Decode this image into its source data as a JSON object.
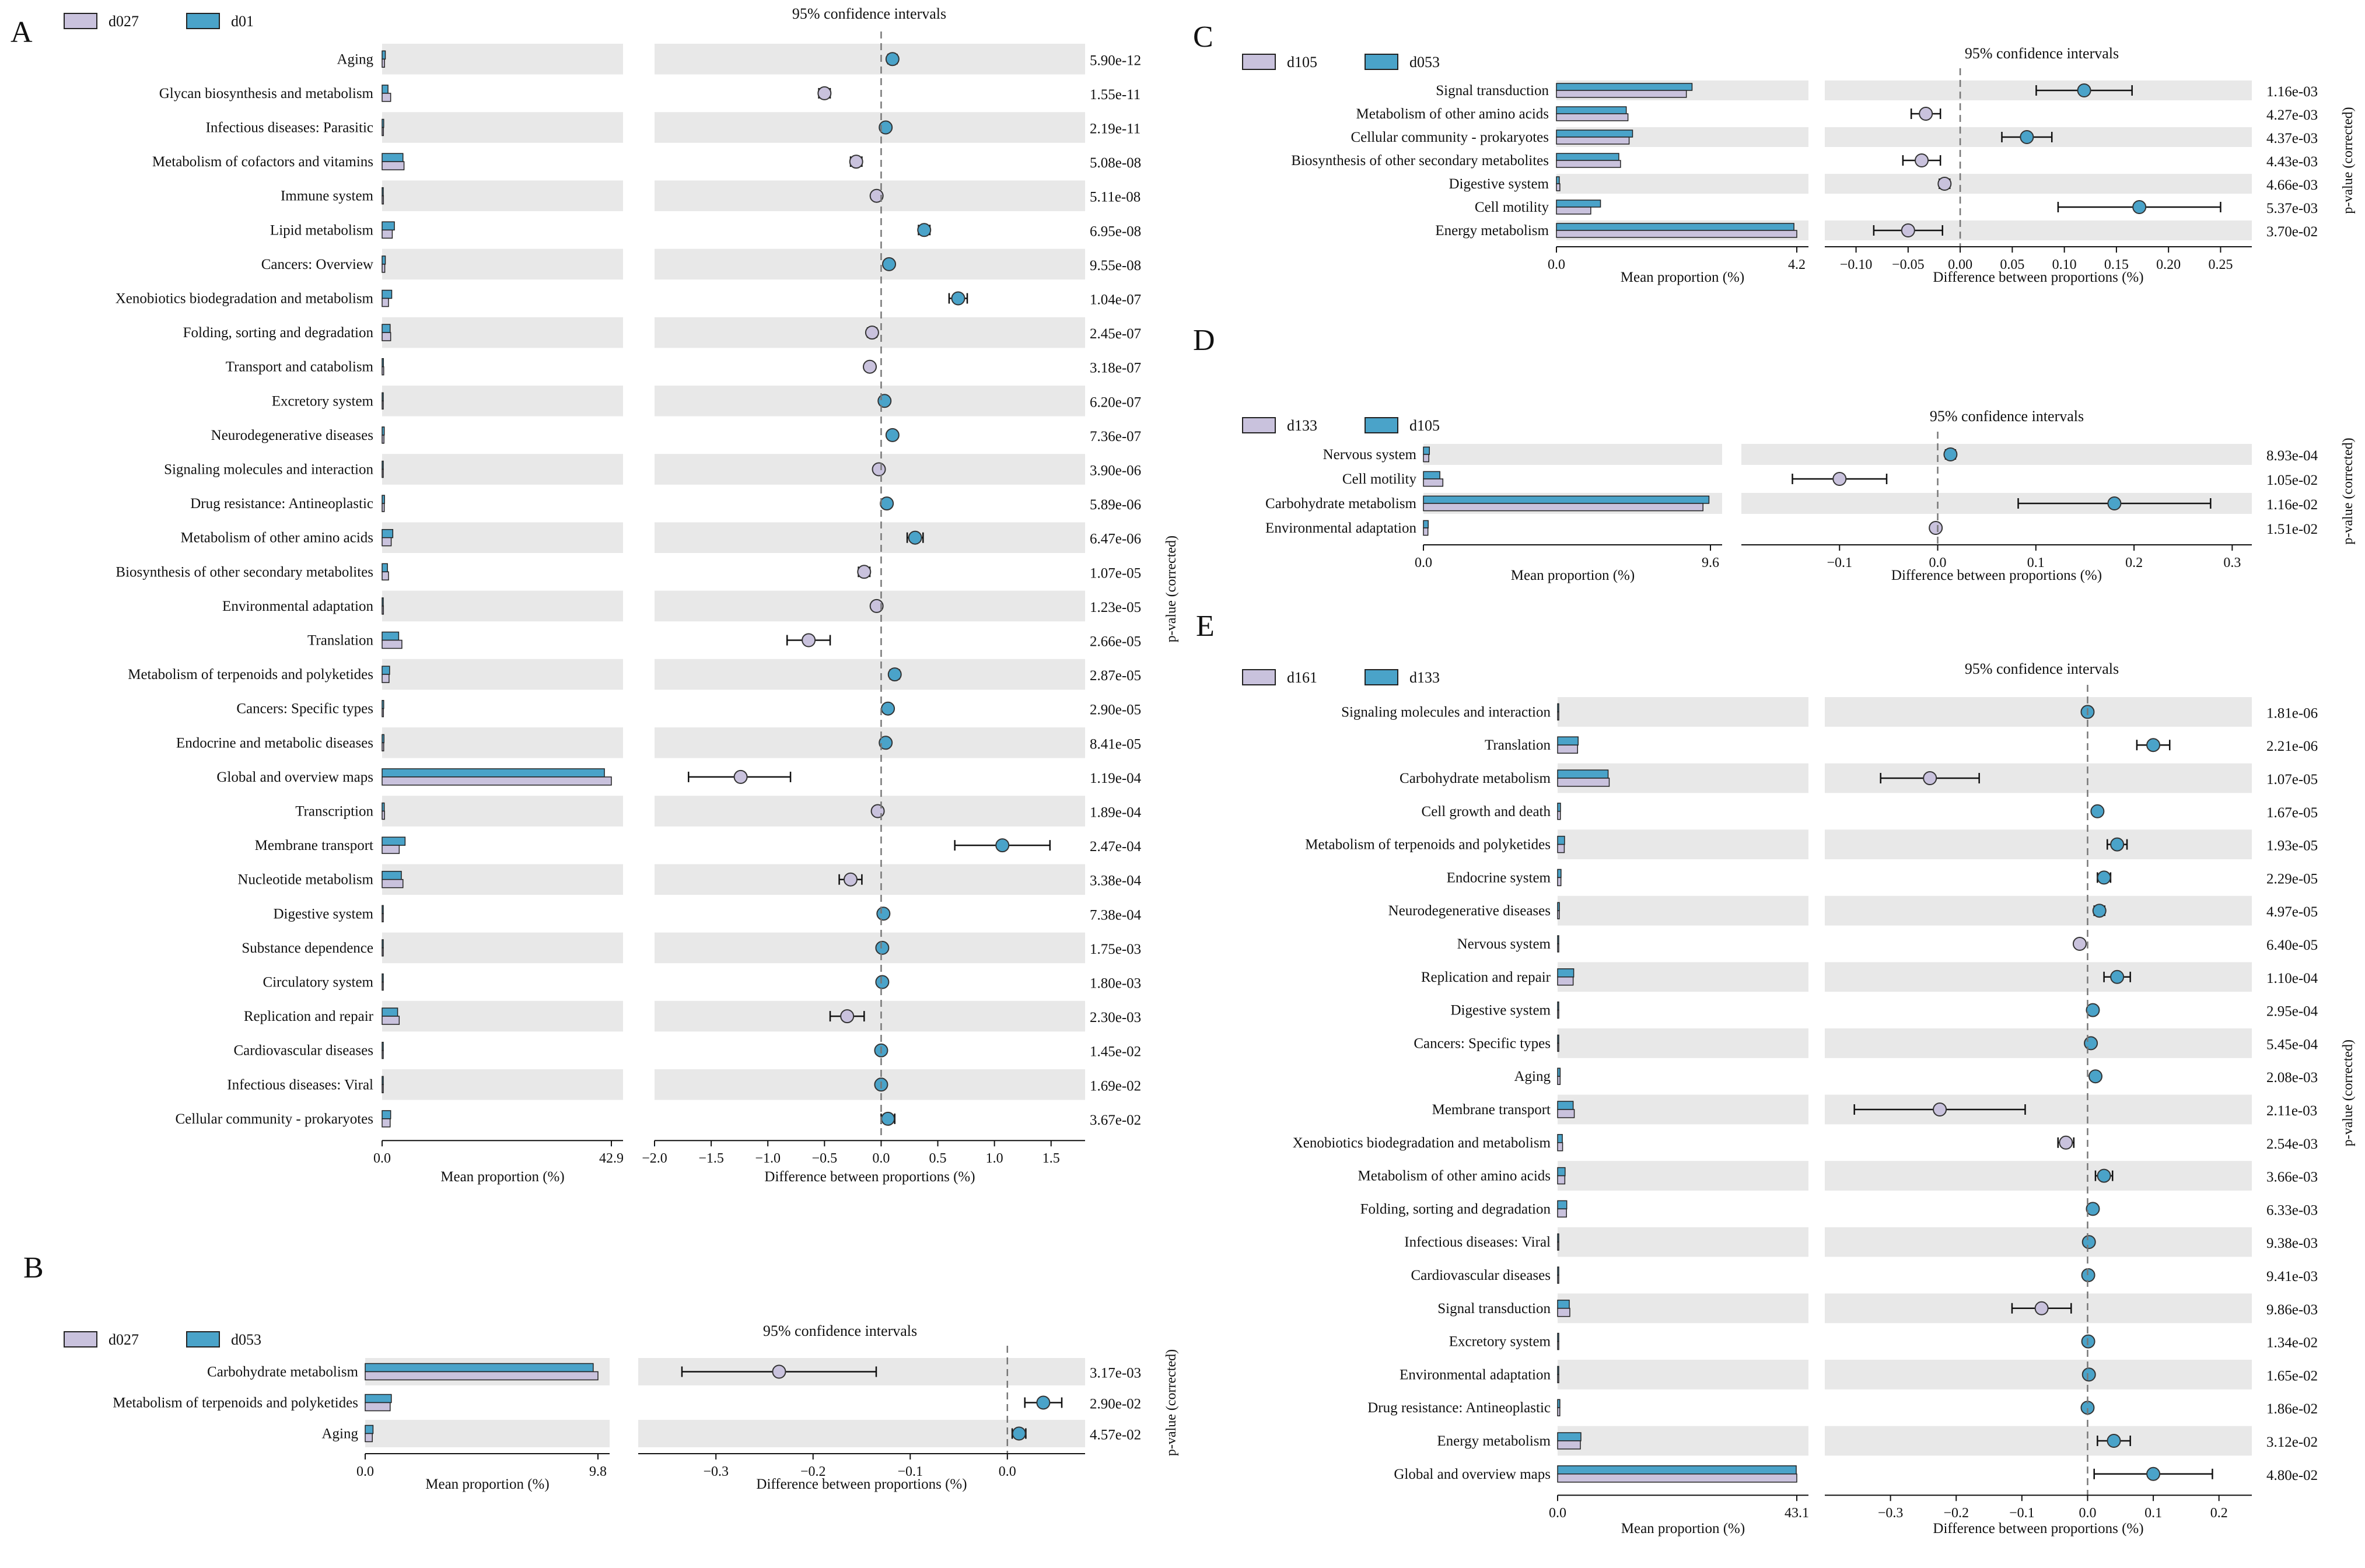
{
  "figure": {
    "description_colors": {
      "group_a": "#c9c2dd",
      "group_b": "#4aa3c9",
      "stripe": "#e8e8e8",
      "ink": "#111111"
    },
    "ci_title": "95% confidence intervals",
    "pvalue_label": "p-value (corrected)",
    "mean_label": "Mean proportion (%)",
    "diff_label": "Difference between proportions (%)"
  },
  "chart_data": [
    {
      "panel": "A",
      "type": "extended_error_bar",
      "group_a": "d027",
      "group_b": "d01",
      "mean_max": 42.9,
      "xlim": [
        -2.0,
        1.8
      ],
      "xticks": [
        -2.0,
        -1.5,
        -1.0,
        -0.5,
        0.0,
        0.5,
        1.0,
        1.5
      ],
      "xtick_labels": [
        "−2.0",
        "−1.5",
        "−1.0",
        "−0.5",
        "0.0",
        "0.5",
        "1.0",
        "1.5"
      ],
      "rows": [
        {
          "label": "Aging",
          "mean_a": 0.45,
          "mean_b": 0.6,
          "diff": 0.1,
          "ci": [
            0.06,
            0.14
          ],
          "p": "5.90e-12"
        },
        {
          "label": "Glycan biosynthesis and metabolism",
          "mean_a": 1.6,
          "mean_b": 1.1,
          "diff": -0.5,
          "ci": [
            -0.55,
            -0.45
          ],
          "p": "1.55e-11"
        },
        {
          "label": "Infectious diseases: Parasitic",
          "mean_a": 0.25,
          "mean_b": 0.3,
          "diff": 0.04,
          "ci": [
            0.01,
            0.07
          ],
          "p": "2.19e-11"
        },
        {
          "label": "Metabolism of cofactors and vitamins",
          "mean_a": 4.1,
          "mean_b": 3.9,
          "diff": -0.22,
          "ci": [
            -0.27,
            -0.17
          ],
          "p": "5.08e-08"
        },
        {
          "label": "Immune system",
          "mean_a": 0.25,
          "mean_b": 0.2,
          "diff": -0.04,
          "ci": [
            -0.07,
            -0.01
          ],
          "p": "5.11e-08"
        },
        {
          "label": "Lipid metabolism",
          "mean_a": 1.9,
          "mean_b": 2.3,
          "diff": 0.38,
          "ci": [
            0.33,
            0.43
          ],
          "p": "6.95e-08"
        },
        {
          "label": "Cancers: Overview",
          "mean_a": 0.5,
          "mean_b": 0.6,
          "diff": 0.07,
          "ci": [
            0.04,
            0.1
          ],
          "p": "9.55e-08"
        },
        {
          "label": "Xenobiotics biodegradation and metabolism",
          "mean_a": 1.2,
          "mean_b": 1.8,
          "diff": 0.68,
          "ci": [
            0.6,
            0.76
          ],
          "p": "1.04e-07"
        },
        {
          "label": "Folding, sorting and degradation",
          "mean_a": 1.6,
          "mean_b": 1.5,
          "diff": -0.08,
          "ci": [
            -0.12,
            -0.04
          ],
          "p": "2.45e-07"
        },
        {
          "label": "Transport and catabolism",
          "mean_a": 0.3,
          "mean_b": 0.25,
          "diff": -0.1,
          "ci": [
            -0.13,
            -0.07
          ],
          "p": "3.18e-07"
        },
        {
          "label": "Excretory system",
          "mean_a": 0.1,
          "mean_b": 0.12,
          "diff": 0.03,
          "ci": [
            0.01,
            0.05
          ],
          "p": "6.20e-07"
        },
        {
          "label": "Neurodegenerative diseases",
          "mean_a": 0.35,
          "mean_b": 0.4,
          "diff": 0.1,
          "ci": [
            0.07,
            0.13
          ],
          "p": "7.36e-07"
        },
        {
          "label": "Signaling molecules and interaction",
          "mean_a": 0.2,
          "mean_b": 0.18,
          "diff": -0.02,
          "ci": [
            -0.04,
            0.0
          ],
          "p": "3.90e-06"
        },
        {
          "label": "Drug resistance: Antineoplastic",
          "mean_a": 0.4,
          "mean_b": 0.45,
          "diff": 0.05,
          "ci": [
            0.03,
            0.07
          ],
          "p": "5.89e-06"
        },
        {
          "label": "Metabolism of other amino acids",
          "mean_a": 1.7,
          "mean_b": 2.0,
          "diff": 0.3,
          "ci": [
            0.23,
            0.37
          ],
          "p": "6.47e-06"
        },
        {
          "label": "Biosynthesis of other secondary metabolites",
          "mean_a": 1.2,
          "mean_b": 1.0,
          "diff": -0.15,
          "ci": [
            -0.2,
            -0.1
          ],
          "p": "1.07e-05"
        },
        {
          "label": "Environmental adaptation",
          "mean_a": 0.25,
          "mean_b": 0.2,
          "diff": -0.04,
          "ci": [
            -0.07,
            -0.01
          ],
          "p": "1.23e-05"
        },
        {
          "label": "Translation",
          "mean_a": 3.7,
          "mean_b": 3.1,
          "diff": -0.64,
          "ci": [
            -0.83,
            -0.45
          ],
          "p": "2.66e-05"
        },
        {
          "label": "Metabolism of terpenoids and polyketides",
          "mean_a": 1.3,
          "mean_b": 1.4,
          "diff": 0.12,
          "ci": [
            0.08,
            0.16
          ],
          "p": "2.87e-05"
        },
        {
          "label": "Cancers: Specific types",
          "mean_a": 0.25,
          "mean_b": 0.3,
          "diff": 0.06,
          "ci": [
            0.03,
            0.09
          ],
          "p": "2.90e-05"
        },
        {
          "label": "Endocrine and metabolic diseases",
          "mean_a": 0.3,
          "mean_b": 0.35,
          "diff": 0.04,
          "ci": [
            0.01,
            0.07
          ],
          "p": "8.41e-05"
        },
        {
          "label": "Global and overview maps",
          "mean_a": 42.9,
          "mean_b": 41.6,
          "diff": -1.24,
          "ci": [
            -1.7,
            -0.8
          ],
          "p": "1.19e-04"
        },
        {
          "label": "Transcription",
          "mean_a": 0.45,
          "mean_b": 0.4,
          "diff": -0.03,
          "ci": [
            -0.06,
            0.0
          ],
          "p": "1.89e-04"
        },
        {
          "label": "Membrane transport",
          "mean_a": 3.2,
          "mean_b": 4.3,
          "diff": 1.07,
          "ci": [
            0.65,
            1.49
          ],
          "p": "2.47e-04"
        },
        {
          "label": "Nucleotide metabolism",
          "mean_a": 3.9,
          "mean_b": 3.6,
          "diff": -0.27,
          "ci": [
            -0.37,
            -0.17
          ],
          "p": "3.38e-04"
        },
        {
          "label": "Digestive system",
          "mean_a": 0.08,
          "mean_b": 0.1,
          "diff": 0.02,
          "ci": [
            0.0,
            0.04
          ],
          "p": "7.38e-04"
        },
        {
          "label": "Substance dependence",
          "mean_a": 0.05,
          "mean_b": 0.06,
          "diff": 0.01,
          "ci": [
            -0.01,
            0.03
          ],
          "p": "1.75e-03"
        },
        {
          "label": "Circulatory system",
          "mean_a": 0.05,
          "mean_b": 0.06,
          "diff": 0.01,
          "ci": [
            -0.01,
            0.03
          ],
          "p": "1.80e-03"
        },
        {
          "label": "Replication and repair",
          "mean_a": 3.2,
          "mean_b": 2.9,
          "diff": -0.3,
          "ci": [
            -0.45,
            -0.15
          ],
          "p": "2.30e-03"
        },
        {
          "label": "Cardiovascular diseases",
          "mean_a": 0.05,
          "mean_b": 0.06,
          "diff": 0.0,
          "ci": [
            -0.02,
            0.02
          ],
          "p": "1.45e-02"
        },
        {
          "label": "Infectious diseases: Viral",
          "mean_a": 0.05,
          "mean_b": 0.06,
          "diff": 0.0,
          "ci": [
            -0.02,
            0.02
          ],
          "p": "1.69e-02"
        },
        {
          "label": "Cellular community - prokaryotes",
          "mean_a": 1.5,
          "mean_b": 1.6,
          "diff": 0.06,
          "ci": [
            0.0,
            0.12
          ],
          "p": "3.67e-02"
        }
      ]
    },
    {
      "panel": "B",
      "type": "extended_error_bar",
      "group_a": "d027",
      "group_b": "d053",
      "mean_max": 9.8,
      "xlim": [
        -0.38,
        0.08
      ],
      "xticks": [
        -0.3,
        -0.2,
        -0.1,
        0.0
      ],
      "xtick_labels": [
        "−0.3",
        "−0.2",
        "−0.1",
        "0.0"
      ],
      "rows": [
        {
          "label": "Carbohydrate metabolism",
          "mean_a": 9.8,
          "mean_b": 9.6,
          "diff": -0.235,
          "ci": [
            -0.335,
            -0.135
          ],
          "p": "3.17e-03"
        },
        {
          "label": "Metabolism of terpenoids and polyketides",
          "mean_a": 1.05,
          "mean_b": 1.1,
          "diff": 0.037,
          "ci": [
            0.018,
            0.056
          ],
          "p": "2.90e-02"
        },
        {
          "label": "Aging",
          "mean_a": 0.3,
          "mean_b": 0.33,
          "diff": 0.012,
          "ci": [
            0.005,
            0.019
          ],
          "p": "4.57e-02"
        }
      ]
    },
    {
      "panel": "C",
      "type": "extended_error_bar",
      "group_a": "d105",
      "group_b": "d053",
      "mean_max": 4.2,
      "xlim": [
        -0.13,
        0.28
      ],
      "xticks": [
        -0.1,
        -0.05,
        0.0,
        0.05,
        0.1,
        0.15,
        0.2,
        0.25
      ],
      "xtick_labels": [
        "−0.10",
        "−0.05",
        "0.00",
        "0.05",
        "0.10",
        "0.15",
        "0.20",
        "0.25"
      ],
      "rows": [
        {
          "label": "Signal transduction",
          "mean_a": 2.27,
          "mean_b": 2.37,
          "diff": 0.119,
          "ci": [
            0.073,
            0.165
          ],
          "p": "1.16e-03"
        },
        {
          "label": "Metabolism of other amino acids",
          "mean_a": 1.25,
          "mean_b": 1.22,
          "diff": -0.033,
          "ci": [
            -0.047,
            -0.019
          ],
          "p": "4.27e-03"
        },
        {
          "label": "Cellular community - prokaryotes",
          "mean_a": 1.27,
          "mean_b": 1.33,
          "diff": 0.064,
          "ci": [
            0.04,
            0.088
          ],
          "p": "4.37e-03"
        },
        {
          "label": "Biosynthesis of other secondary metabolites",
          "mean_a": 1.12,
          "mean_b": 1.09,
          "diff": -0.037,
          "ci": [
            -0.055,
            -0.019
          ],
          "p": "4.43e-03"
        },
        {
          "label": "Digestive system",
          "mean_a": 0.06,
          "mean_b": 0.05,
          "diff": -0.015,
          "ci": [
            -0.02,
            -0.01
          ],
          "p": "4.66e-03"
        },
        {
          "label": "Cell motility",
          "mean_a": 0.6,
          "mean_b": 0.77,
          "diff": 0.172,
          "ci": [
            0.094,
            0.25
          ],
          "p": "5.37e-03"
        },
        {
          "label": "Energy metabolism",
          "mean_a": 4.2,
          "mean_b": 4.15,
          "diff": -0.05,
          "ci": [
            -0.083,
            -0.017
          ],
          "p": "3.70e-02"
        }
      ]
    },
    {
      "panel": "D",
      "type": "extended_error_bar",
      "group_a": "d133",
      "group_b": "d105",
      "mean_max": 9.6,
      "xlim": [
        -0.2,
        0.32
      ],
      "xticks": [
        -0.1,
        0.0,
        0.1,
        0.2,
        0.3
      ],
      "xtick_labels": [
        "−0.1",
        "0.0",
        "0.1",
        "0.2",
        "0.3"
      ],
      "rows": [
        {
          "label": "Nervous system",
          "mean_a": 0.18,
          "mean_b": 0.2,
          "diff": 0.013,
          "ci": [
            0.008,
            0.018
          ],
          "p": "8.93e-04"
        },
        {
          "label": "Cell motility",
          "mean_a": 0.65,
          "mean_b": 0.55,
          "diff": -0.1,
          "ci": [
            -0.148,
            -0.052
          ],
          "p": "1.05e-02"
        },
        {
          "label": "Carbohydrate metabolism",
          "mean_a": 9.35,
          "mean_b": 9.55,
          "diff": 0.18,
          "ci": [
            0.082,
            0.278
          ],
          "p": "1.16e-02"
        },
        {
          "label": "Environmental adaptation",
          "mean_a": 0.15,
          "mean_b": 0.16,
          "diff": -0.002,
          "ci": [
            -0.006,
            0.002
          ],
          "p": "1.51e-02"
        }
      ]
    },
    {
      "panel": "E",
      "type": "extended_error_bar",
      "group_a": "d161",
      "group_b": "d133",
      "mean_max": 43.1,
      "xlim": [
        -0.4,
        0.25
      ],
      "xticks": [
        -0.3,
        -0.2,
        -0.1,
        0.0,
        0.1,
        0.2
      ],
      "xtick_labels": [
        "−0.3",
        "−0.2",
        "−0.1",
        "0.0",
        "0.1",
        "0.2"
      ],
      "rows": [
        {
          "label": "Signaling molecules and interaction",
          "mean_a": 0.15,
          "mean_b": 0.17,
          "diff": 0.0,
          "ci": [
            -0.003,
            0.003
          ],
          "p": "1.81e-06"
        },
        {
          "label": "Translation",
          "mean_a": 3.6,
          "mean_b": 3.7,
          "diff": 0.1,
          "ci": [
            0.075,
            0.125
          ],
          "p": "2.21e-06"
        },
        {
          "label": "Carbohydrate metabolism",
          "mean_a": 9.3,
          "mean_b": 9.1,
          "diff": -0.24,
          "ci": [
            -0.315,
            -0.165
          ],
          "p": "1.07e-05"
        },
        {
          "label": "Cell growth and death",
          "mean_a": 0.5,
          "mean_b": 0.52,
          "diff": 0.015,
          "ci": [
            0.01,
            0.02
          ],
          "p": "1.67e-05"
        },
        {
          "label": "Metabolism of terpenoids and polyketides",
          "mean_a": 1.2,
          "mean_b": 1.25,
          "diff": 0.045,
          "ci": [
            0.03,
            0.06
          ],
          "p": "1.93e-05"
        },
        {
          "label": "Endocrine system",
          "mean_a": 0.6,
          "mean_b": 0.62,
          "diff": 0.025,
          "ci": [
            0.015,
            0.035
          ],
          "p": "2.29e-05"
        },
        {
          "label": "Neurodegenerative diseases",
          "mean_a": 0.3,
          "mean_b": 0.32,
          "diff": 0.018,
          "ci": [
            0.01,
            0.026
          ],
          "p": "4.97e-05"
        },
        {
          "label": "Nervous system",
          "mean_a": 0.18,
          "mean_b": 0.17,
          "diff": -0.012,
          "ci": [
            -0.017,
            -0.007
          ],
          "p": "6.40e-05"
        },
        {
          "label": "Replication and repair",
          "mean_a": 2.8,
          "mean_b": 2.9,
          "diff": 0.045,
          "ci": [
            0.025,
            0.065
          ],
          "p": "1.10e-04"
        },
        {
          "label": "Digestive system",
          "mean_a": 0.07,
          "mean_b": 0.08,
          "diff": 0.008,
          "ci": [
            0.003,
            0.013
          ],
          "p": "2.95e-04"
        },
        {
          "label": "Cancers: Specific types",
          "mean_a": 0.2,
          "mean_b": 0.21,
          "diff": 0.005,
          "ci": [
            0.0,
            0.01
          ],
          "p": "5.45e-04"
        },
        {
          "label": "Aging",
          "mean_a": 0.45,
          "mean_b": 0.46,
          "diff": 0.012,
          "ci": [
            0.006,
            0.018
          ],
          "p": "2.08e-03"
        },
        {
          "label": "Membrane transport",
          "mean_a": 3.0,
          "mean_b": 2.8,
          "diff": -0.225,
          "ci": [
            -0.355,
            -0.095
          ],
          "p": "2.11e-03"
        },
        {
          "label": "Xenobiotics biodegradation and metabolism",
          "mean_a": 0.9,
          "mean_b": 0.85,
          "diff": -0.033,
          "ci": [
            -0.045,
            -0.021
          ],
          "p": "2.54e-03"
        },
        {
          "label": "Metabolism of other amino acids",
          "mean_a": 1.3,
          "mean_b": 1.35,
          "diff": 0.025,
          "ci": [
            0.012,
            0.038
          ],
          "p": "3.66e-03"
        },
        {
          "label": "Folding, sorting and degradation",
          "mean_a": 1.6,
          "mean_b": 1.65,
          "diff": 0.008,
          "ci": [
            0.002,
            0.014
          ],
          "p": "6.33e-03"
        },
        {
          "label": "Infectious diseases: Viral",
          "mean_a": 0.06,
          "mean_b": 0.065,
          "diff": 0.002,
          "ci": [
            -0.002,
            0.006
          ],
          "p": "9.38e-03"
        },
        {
          "label": "Cardiovascular diseases",
          "mean_a": 0.05,
          "mean_b": 0.052,
          "diff": 0.001,
          "ci": [
            -0.002,
            0.004
          ],
          "p": "9.41e-03"
        },
        {
          "label": "Signal transduction",
          "mean_a": 2.2,
          "mean_b": 2.1,
          "diff": -0.07,
          "ci": [
            -0.115,
            -0.025
          ],
          "p": "9.86e-03"
        },
        {
          "label": "Excretory system",
          "mean_a": 0.08,
          "mean_b": 0.085,
          "diff": 0.001,
          "ci": [
            -0.002,
            0.004
          ],
          "p": "1.34e-02"
        },
        {
          "label": "Environmental adaptation",
          "mean_a": 0.2,
          "mean_b": 0.205,
          "diff": 0.002,
          "ci": [
            -0.001,
            0.005
          ],
          "p": "1.65e-02"
        },
        {
          "label": "Drug resistance: Antineoplastic",
          "mean_a": 0.4,
          "mean_b": 0.41,
          "diff": 0.0,
          "ci": [
            -0.003,
            0.003
          ],
          "p": "1.86e-02"
        },
        {
          "label": "Energy metabolism",
          "mean_a": 4.1,
          "mean_b": 4.2,
          "diff": 0.04,
          "ci": [
            0.015,
            0.065
          ],
          "p": "3.12e-02"
        },
        {
          "label": "Global and overview maps",
          "mean_a": 43.1,
          "mean_b": 43.0,
          "diff": 0.1,
          "ci": [
            0.01,
            0.19
          ],
          "p": "4.80e-02"
        }
      ]
    }
  ]
}
